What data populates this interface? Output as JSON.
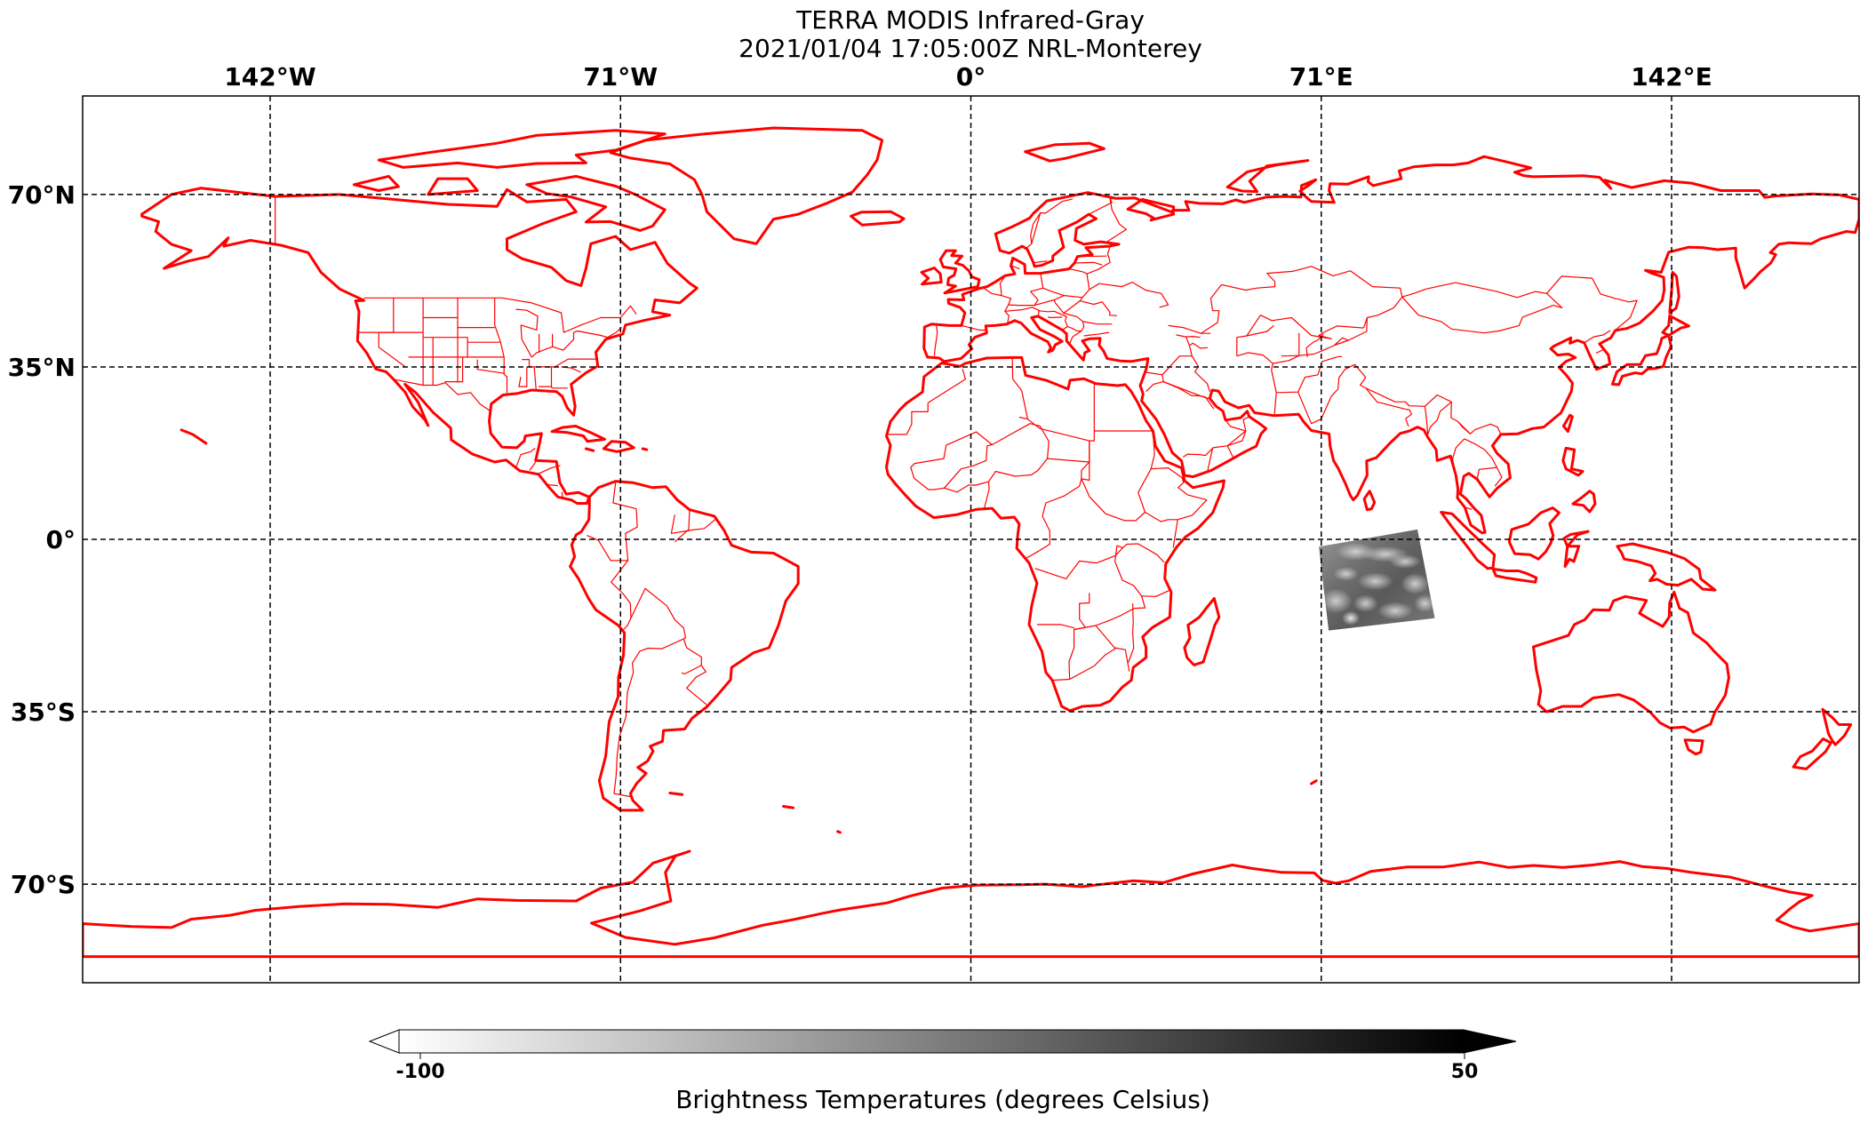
{
  "title": {
    "line1": "TERRA MODIS Infrared-Gray",
    "line2": "2021/01/04 17:05:00Z NRL-Monterey"
  },
  "map": {
    "projection": "PlateCarree",
    "extent_lon": [
      -180,
      180
    ],
    "extent_lat": [
      -90,
      90
    ],
    "coastline_color": "#ff0000",
    "border_color": "#ff0000",
    "gridline_color": "#000000",
    "gridline_style": "dashed",
    "longitude_ticks": [
      {
        "value": -142,
        "label": "142°W"
      },
      {
        "value": -71,
        "label": "71°W"
      },
      {
        "value": 0,
        "label": "0°"
      },
      {
        "value": 71,
        "label": "71°E"
      },
      {
        "value": 142,
        "label": "142°E"
      }
    ],
    "latitude_ticks": [
      {
        "value": 70,
        "label": "70°N"
      },
      {
        "value": 35,
        "label": "35°N"
      },
      {
        "value": 0,
        "label": "0°"
      },
      {
        "value": -35,
        "label": "35°S"
      },
      {
        "value": -70,
        "label": "70°S"
      }
    ],
    "satellite_swath": {
      "description_location": "Indian Ocean, south of India",
      "corners_lonlat": [
        [
          70.5,
          -1.5
        ],
        [
          90.5,
          2.0
        ],
        [
          94.0,
          -16.0
        ],
        [
          72.5,
          -18.5
        ]
      ],
      "colormap": "gray"
    }
  },
  "colorbar": {
    "min": -100,
    "max": 50,
    "min_label": "-100",
    "max_label": "50",
    "label": "Brightness Temperatures (degrees Celsius)",
    "color_start": "#ffffff",
    "color_end": "#000000",
    "extend": "both"
  }
}
